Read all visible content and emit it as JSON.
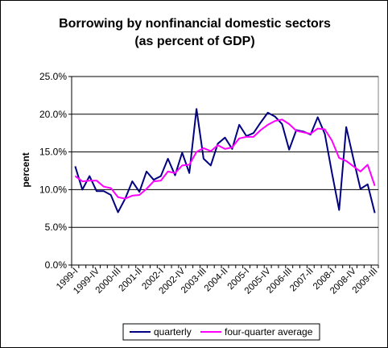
{
  "chart_data": {
    "type": "line",
    "title_lines": [
      "Borrowing by nonfinancial domestic sectors",
      "(as percent of GDP)"
    ],
    "ylabel": "percent",
    "xlabel": "",
    "ylim": [
      0,
      25
    ],
    "y_ticks": [
      0,
      5,
      10,
      15,
      20,
      25
    ],
    "y_tick_labels": [
      "0.0%",
      "5.0%",
      "10.0%",
      "15.0%",
      "20.0%",
      "25.0%"
    ],
    "grid": "horizontal",
    "legend_position": "bottom",
    "x": [
      "1999-I",
      "1999-II",
      "1999-III",
      "1999-IV",
      "2000-I",
      "2000-II",
      "2000-III",
      "2000-IV",
      "2001-I",
      "2001-II",
      "2001-III",
      "2001-IV",
      "2002-I",
      "2002-II",
      "2002-III",
      "2002-IV",
      "2003-I",
      "2003-II",
      "2003-III",
      "2003-IV",
      "2004-I",
      "2004-II",
      "2004-III",
      "2004-IV",
      "2005-I",
      "2005-II",
      "2005-III",
      "2005-IV",
      "2006-I",
      "2006-II",
      "2006-III",
      "2006-IV",
      "2007-I",
      "2007-II",
      "2007-III",
      "2007-IV",
      "2008-I",
      "2008-II",
      "2008-III",
      "2008-IV",
      "2009-I",
      "2009-II",
      "2009-III"
    ],
    "x_tick_labels": [
      "1999-I",
      "1999-IV",
      "2000-III",
      "2001-II",
      "2002-I",
      "2002-IV",
      "2003-III",
      "2004-II",
      "2005-I",
      "2005-IV",
      "2006-III",
      "2007-II",
      "2008-I",
      "2008-IV",
      "2009-III"
    ],
    "series": [
      {
        "name": "quarterly",
        "color": "#000080",
        "values": [
          13.1,
          10.0,
          11.8,
          9.8,
          9.8,
          9.3,
          7.0,
          8.8,
          11.1,
          9.7,
          12.4,
          11.3,
          11.8,
          14.1,
          11.9,
          14.9,
          12.2,
          20.7,
          14.1,
          13.2,
          16.1,
          16.9,
          15.4,
          18.6,
          17.1,
          17.5,
          18.9,
          20.2,
          19.7,
          18.7,
          15.3,
          17.9,
          17.7,
          17.3,
          19.6,
          17.4,
          12.2,
          7.3,
          18.3,
          14.1,
          10.1,
          10.7,
          6.9
        ]
      },
      {
        "name": "four-quarter average",
        "color": "#ff00ff",
        "values": [
          11.8,
          11.1,
          11.2,
          11.2,
          10.4,
          10.2,
          9.0,
          8.8,
          9.2,
          9.3,
          10.1,
          11.1,
          11.2,
          12.4,
          12.2,
          13.2,
          13.3,
          15.0,
          15.5,
          15.1,
          15.9,
          15.4,
          15.6,
          16.8,
          17.0,
          17.0,
          17.9,
          18.6,
          19.1,
          19.3,
          18.7,
          17.8,
          17.6,
          17.4,
          18.1,
          18.0,
          16.5,
          14.2,
          13.8,
          13.1,
          12.4,
          13.3,
          10.5
        ]
      }
    ]
  }
}
